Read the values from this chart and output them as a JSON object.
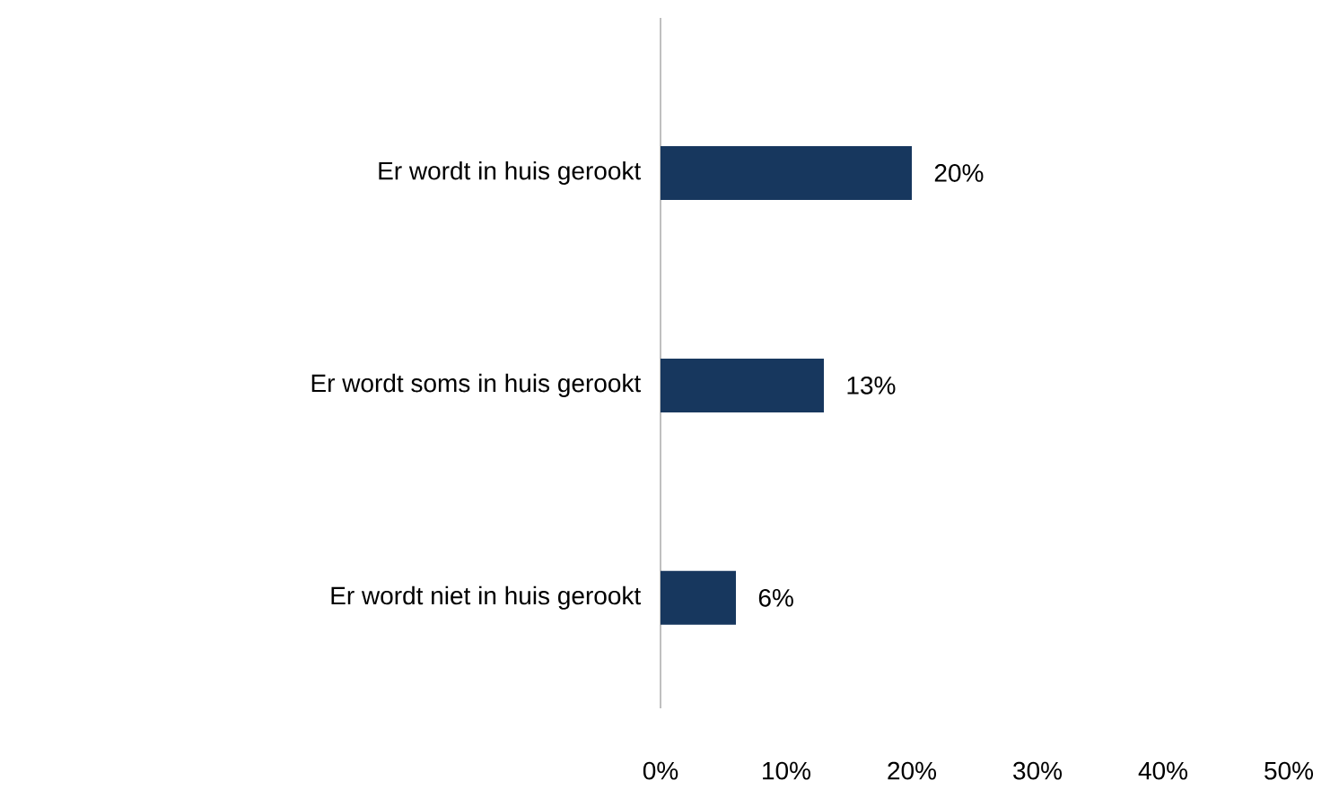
{
  "chart_data": {
    "type": "bar",
    "orientation": "horizontal",
    "categories": [
      "Er wordt in huis gerookt",
      "Er wordt soms in huis gerookt",
      "Er wordt niet in huis gerookt"
    ],
    "values": [
      20,
      13,
      6
    ],
    "value_labels": [
      "20%",
      "13%",
      "6%"
    ],
    "color": "#17375e",
    "xlim": [
      0,
      50
    ],
    "xticks": [
      {
        "value": 0,
        "label": "0%"
      },
      {
        "value": 10,
        "label": "10%"
      },
      {
        "value": 20,
        "label": "20%"
      },
      {
        "value": 30,
        "label": "30%"
      },
      {
        "value": 40,
        "label": "40%"
      },
      {
        "value": 50,
        "label": "50%"
      }
    ]
  }
}
